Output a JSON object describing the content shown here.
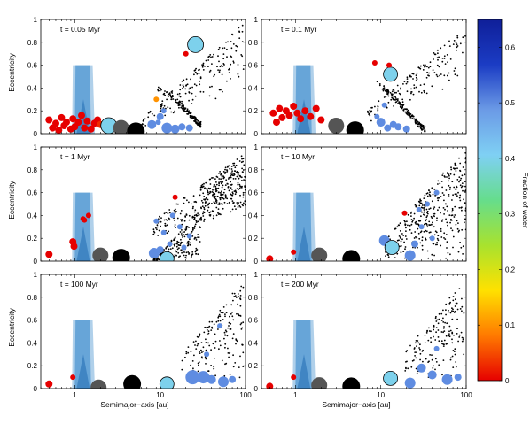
{
  "figure": {
    "colorbar_label": "Fraction of water",
    "colorbar_ticks": [
      "0",
      "0.1",
      "0.2",
      "0.3",
      "0.4",
      "0.5",
      "0.6"
    ],
    "ylabel": "Eccentricity",
    "xlabel": "Semimajor−axis [au]",
    "x_tick_labels": [
      "1",
      "10",
      "100"
    ],
    "y_tick_labels": [
      "0",
      "0.2",
      "0.4",
      "0.6",
      "0.8",
      "1"
    ]
  },
  "colors": {
    "colormap": [
      "#e60000",
      "#ff7a00",
      "#ffe100",
      "#a8e22e",
      "#66dd8c",
      "#7fd0f4",
      "#6b9ae6",
      "#1b3cc4",
      "#0f1f99"
    ],
    "zone": "#4f97d1",
    "zone_inner": "#3a7fbf",
    "planet_particle": "#111111"
  },
  "chart_data": [
    {
      "type": "scatter",
      "panel": "t = 0.05 Myr",
      "xlabel": "",
      "ylabel": "Eccentricity",
      "xscale": "log",
      "xlim": [
        0.4,
        100
      ],
      "ylim": [
        0,
        1
      ],
      "bodies": [
        {
          "a": 0.5,
          "e": 0.12,
          "water": 0.0,
          "size": 4
        },
        {
          "a": 0.55,
          "e": 0.05,
          "water": 0.0,
          "size": 4
        },
        {
          "a": 0.6,
          "e": 0.09,
          "water": 0.0,
          "size": 4
        },
        {
          "a": 0.65,
          "e": 0.03,
          "water": 0.0,
          "size": 4
        },
        {
          "a": 0.7,
          "e": 0.14,
          "water": 0.0,
          "size": 4
        },
        {
          "a": 0.75,
          "e": 0.07,
          "water": 0.0,
          "size": 4
        },
        {
          "a": 0.8,
          "e": 0.1,
          "water": 0.0,
          "size": 4
        },
        {
          "a": 0.9,
          "e": 0.04,
          "water": 0.0,
          "size": 4
        },
        {
          "a": 0.95,
          "e": 0.13,
          "water": 0.0,
          "size": 4
        },
        {
          "a": 1.0,
          "e": 0.06,
          "water": 0.0,
          "size": 4
        },
        {
          "a": 1.1,
          "e": 0.1,
          "water": 0.0,
          "size": 4
        },
        {
          "a": 1.2,
          "e": 0.16,
          "water": 0.0,
          "size": 4
        },
        {
          "a": 1.3,
          "e": 0.05,
          "water": 0.0,
          "size": 4
        },
        {
          "a": 1.4,
          "e": 0.11,
          "water": 0.0,
          "size": 4
        },
        {
          "a": 1.55,
          "e": 0.04,
          "water": 0.0,
          "size": 4
        },
        {
          "a": 1.7,
          "e": 0.09,
          "water": 0.0,
          "size": 4
        },
        {
          "a": 1.85,
          "e": 0.12,
          "water": 0.0,
          "size": 4
        },
        {
          "a": 2.0,
          "e": 0.08,
          "water": 0.03,
          "size": 4
        },
        {
          "a": 2.5,
          "e": 0.07,
          "water": 0.4,
          "size": 9
        },
        {
          "a": 3.5,
          "e": 0.05,
          "water": null,
          "size": 9
        },
        {
          "a": 5.2,
          "e": 0.02,
          "water": null,
          "size": 10
        },
        {
          "a": 9.0,
          "e": 0.3,
          "water": 0.1,
          "size": 3
        },
        {
          "a": 20.0,
          "e": 0.7,
          "water": 0.0,
          "size": 3
        },
        {
          "a": 26.0,
          "e": 0.78,
          "water": 0.4,
          "size": 9
        },
        {
          "a": 8.0,
          "e": 0.08,
          "water": 0.5,
          "size": 5
        },
        {
          "a": 10.0,
          "e": 0.15,
          "water": 0.5,
          "size": 4
        },
        {
          "a": 12.0,
          "e": 0.05,
          "water": 0.5,
          "size": 6
        },
        {
          "a": 15.0,
          "e": 0.04,
          "water": 0.5,
          "size": 5
        },
        {
          "a": 11.0,
          "e": 0.2,
          "water": 0.5,
          "size": 3
        },
        {
          "a": 9.5,
          "e": 0.1,
          "water": 0.5,
          "size": 3
        },
        {
          "a": 18.0,
          "e": 0.06,
          "water": 0.5,
          "size": 4
        },
        {
          "a": 22.0,
          "e": 0.05,
          "water": 0.5,
          "size": 4
        }
      ],
      "background": {
        "seed": 11,
        "count": 320,
        "mode": "early"
      }
    },
    {
      "type": "scatter",
      "panel": "t = 0.1 Myr",
      "xlabel": "",
      "ylabel": "",
      "xscale": "log",
      "xlim": [
        0.4,
        100
      ],
      "ylim": [
        0,
        1
      ],
      "bodies": [
        {
          "a": 0.55,
          "e": 0.18,
          "water": 0.0,
          "size": 4
        },
        {
          "a": 0.6,
          "e": 0.1,
          "water": 0.0,
          "size": 4
        },
        {
          "a": 0.65,
          "e": 0.22,
          "water": 0.0,
          "size": 4
        },
        {
          "a": 0.7,
          "e": 0.14,
          "water": 0.0,
          "size": 4
        },
        {
          "a": 0.78,
          "e": 0.2,
          "water": 0.0,
          "size": 4
        },
        {
          "a": 0.85,
          "e": 0.16,
          "water": 0.0,
          "size": 4
        },
        {
          "a": 0.95,
          "e": 0.24,
          "water": 0.0,
          "size": 4
        },
        {
          "a": 1.05,
          "e": 0.18,
          "water": 0.0,
          "size": 4
        },
        {
          "a": 1.15,
          "e": 0.13,
          "water": 0.0,
          "size": 4
        },
        {
          "a": 1.3,
          "e": 0.2,
          "water": 0.0,
          "size": 4
        },
        {
          "a": 1.5,
          "e": 0.15,
          "water": 0.0,
          "size": 4
        },
        {
          "a": 1.75,
          "e": 0.22,
          "water": 0.0,
          "size": 4
        },
        {
          "a": 2.0,
          "e": 0.12,
          "water": 0.0,
          "size": 4
        },
        {
          "a": 3.0,
          "e": 0.07,
          "water": null,
          "size": 9
        },
        {
          "a": 5.0,
          "e": 0.03,
          "water": null,
          "size": 10
        },
        {
          "a": 8.5,
          "e": 0.62,
          "water": 0.0,
          "size": 3
        },
        {
          "a": 13.0,
          "e": 0.52,
          "water": 0.4,
          "size": 8
        },
        {
          "a": 12.5,
          "e": 0.6,
          "water": 0.0,
          "size": 3
        },
        {
          "a": 10.0,
          "e": 0.1,
          "water": 0.5,
          "size": 5
        },
        {
          "a": 12.0,
          "e": 0.05,
          "water": 0.5,
          "size": 4
        },
        {
          "a": 14.0,
          "e": 0.08,
          "water": 0.5,
          "size": 4
        },
        {
          "a": 9.0,
          "e": 0.15,
          "water": 0.5,
          "size": 3
        },
        {
          "a": 16.0,
          "e": 0.06,
          "water": 0.5,
          "size": 4
        },
        {
          "a": 20.0,
          "e": 0.04,
          "water": 0.5,
          "size": 4
        },
        {
          "a": 11.0,
          "e": 0.25,
          "water": 0.5,
          "size": 3
        }
      ],
      "background": {
        "seed": 23,
        "count": 320,
        "mode": "early2"
      }
    },
    {
      "type": "scatter",
      "panel": "t = 1 Myr",
      "xlabel": "",
      "ylabel": "Eccentricity",
      "xscale": "log",
      "xlim": [
        0.4,
        100
      ],
      "ylim": [
        0,
        1
      ],
      "bodies": [
        {
          "a": 0.5,
          "e": 0.06,
          "water": 0.0,
          "size": 4
        },
        {
          "a": 0.95,
          "e": 0.17,
          "water": 0.0,
          "size": 4
        },
        {
          "a": 0.98,
          "e": 0.13,
          "water": 0.0,
          "size": 4
        },
        {
          "a": 1.25,
          "e": 0.37,
          "water": 0.0,
          "size": 3
        },
        {
          "a": 1.3,
          "e": 0.36,
          "water": 0.0,
          "size": 3
        },
        {
          "a": 1.45,
          "e": 0.4,
          "water": 0.0,
          "size": 3
        },
        {
          "a": 2.0,
          "e": 0.05,
          "water": null,
          "size": 9
        },
        {
          "a": 3.5,
          "e": 0.03,
          "water": null,
          "size": 10
        },
        {
          "a": 8.5,
          "e": 0.07,
          "water": 0.5,
          "size": 6
        },
        {
          "a": 12.0,
          "e": 0.02,
          "water": 0.4,
          "size": 8
        },
        {
          "a": 15.0,
          "e": 0.56,
          "water": 0.0,
          "size": 3
        },
        {
          "a": 9.0,
          "e": 0.35,
          "water": 0.5,
          "size": 3
        },
        {
          "a": 11.0,
          "e": 0.25,
          "water": 0.5,
          "size": 3
        },
        {
          "a": 13.0,
          "e": 0.15,
          "water": 0.5,
          "size": 3
        },
        {
          "a": 17.0,
          "e": 0.3,
          "water": 0.5,
          "size": 3
        },
        {
          "a": 19.0,
          "e": 0.12,
          "water": 0.5,
          "size": 3
        },
        {
          "a": 22.0,
          "e": 0.22,
          "water": 0.5,
          "size": 3
        },
        {
          "a": 10.0,
          "e": 0.1,
          "water": 0.5,
          "size": 4
        },
        {
          "a": 14.0,
          "e": 0.4,
          "water": 0.5,
          "size": 3
        }
      ],
      "background": {
        "seed": 37,
        "count": 600,
        "mode": "cloud"
      }
    },
    {
      "type": "scatter",
      "panel": "t = 10 Myr",
      "xlabel": "",
      "ylabel": "",
      "xscale": "log",
      "xlim": [
        0.4,
        100
      ],
      "ylim": [
        0,
        1
      ],
      "bodies": [
        {
          "a": 0.5,
          "e": 0.02,
          "water": 0.0,
          "size": 4
        },
        {
          "a": 0.95,
          "e": 0.08,
          "water": 0.0,
          "size": 3
        },
        {
          "a": 1.9,
          "e": 0.05,
          "water": null,
          "size": 9
        },
        {
          "a": 4.5,
          "e": 0.02,
          "water": null,
          "size": 10
        },
        {
          "a": 11.0,
          "e": 0.18,
          "water": 0.5,
          "size": 6
        },
        {
          "a": 13.5,
          "e": 0.12,
          "water": 0.4,
          "size": 8
        },
        {
          "a": 19.0,
          "e": 0.42,
          "water": 0.0,
          "size": 3
        },
        {
          "a": 22.0,
          "e": 0.05,
          "water": 0.5,
          "size": 6
        },
        {
          "a": 25.0,
          "e": 0.15,
          "water": 0.5,
          "size": 4
        },
        {
          "a": 30.0,
          "e": 0.3,
          "water": 0.5,
          "size": 3
        },
        {
          "a": 35.0,
          "e": 0.5,
          "water": 0.5,
          "size": 3
        },
        {
          "a": 40.0,
          "e": 0.2,
          "water": 0.5,
          "size": 3
        },
        {
          "a": 28.0,
          "e": 0.45,
          "water": 0.5,
          "size": 3
        },
        {
          "a": 45.0,
          "e": 0.6,
          "water": 0.5,
          "size": 3
        }
      ],
      "background": {
        "seed": 51,
        "count": 380,
        "mode": "wedge"
      }
    },
    {
      "type": "scatter",
      "panel": "t = 100 Myr",
      "xlabel": "Semimajor−axis [au]",
      "ylabel": "Eccentricity",
      "xscale": "log",
      "xlim": [
        0.4,
        100
      ],
      "ylim": [
        0,
        1
      ],
      "bodies": [
        {
          "a": 0.5,
          "e": 0.04,
          "water": 0.0,
          "size": 4
        },
        {
          "a": 0.95,
          "e": 0.1,
          "water": 0.0,
          "size": 3
        },
        {
          "a": 1.9,
          "e": 0.01,
          "water": null,
          "size": 9
        },
        {
          "a": 4.7,
          "e": 0.04,
          "water": null,
          "size": 10
        },
        {
          "a": 12.0,
          "e": 0.04,
          "water": 0.4,
          "size": 8
        },
        {
          "a": 24.0,
          "e": 0.1,
          "water": 0.5,
          "size": 8
        },
        {
          "a": 32.0,
          "e": 0.1,
          "water": 0.5,
          "size": 7
        },
        {
          "a": 40.0,
          "e": 0.08,
          "water": 0.5,
          "size": 5
        },
        {
          "a": 55.0,
          "e": 0.06,
          "water": 0.5,
          "size": 6
        },
        {
          "a": 70.0,
          "e": 0.08,
          "water": 0.5,
          "size": 4
        },
        {
          "a": 35.0,
          "e": 0.3,
          "water": 0.5,
          "size": 3
        },
        {
          "a": 50.0,
          "e": 0.55,
          "water": 0.5,
          "size": 3
        }
      ],
      "background": {
        "seed": 67,
        "count": 180,
        "mode": "sparse"
      }
    },
    {
      "type": "scatter",
      "panel": "t = 200 Myr",
      "xlabel": "Semimajor−axis [au]",
      "ylabel": "",
      "xscale": "log",
      "xlim": [
        0.4,
        100
      ],
      "ylim": [
        0,
        1
      ],
      "bodies": [
        {
          "a": 0.5,
          "e": 0.02,
          "water": 0.0,
          "size": 4
        },
        {
          "a": 0.95,
          "e": 0.1,
          "water": 0.0,
          "size": 3
        },
        {
          "a": 1.9,
          "e": 0.03,
          "water": null,
          "size": 9
        },
        {
          "a": 4.5,
          "e": 0.02,
          "water": null,
          "size": 10
        },
        {
          "a": 13.0,
          "e": 0.09,
          "water": 0.4,
          "size": 8
        },
        {
          "a": 22.0,
          "e": 0.05,
          "water": 0.5,
          "size": 6
        },
        {
          "a": 30.0,
          "e": 0.18,
          "water": 0.5,
          "size": 5
        },
        {
          "a": 40.0,
          "e": 0.12,
          "water": 0.5,
          "size": 5
        },
        {
          "a": 60.0,
          "e": 0.08,
          "water": 0.5,
          "size": 6
        },
        {
          "a": 80.0,
          "e": 0.1,
          "water": 0.5,
          "size": 4
        },
        {
          "a": 45.0,
          "e": 0.35,
          "water": 0.5,
          "size": 3
        }
      ],
      "background": {
        "seed": 83,
        "count": 170,
        "mode": "sparse"
      }
    }
  ]
}
